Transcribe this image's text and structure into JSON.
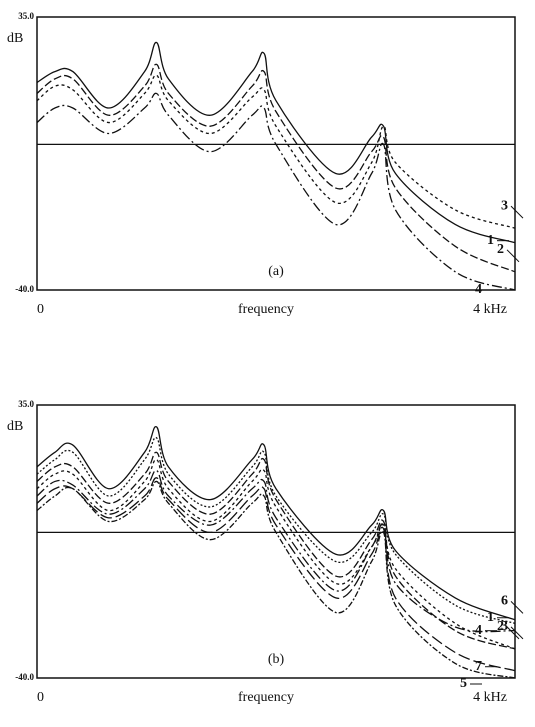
{
  "chart_data": [
    {
      "type": "line",
      "annotation": "(a)",
      "ylabel": "dB",
      "xlabel": "frequency",
      "x": [
        0,
        0.15,
        0.3,
        0.6,
        0.9,
        1.0,
        1.1,
        1.45,
        1.8,
        1.9,
        2.0,
        2.5,
        2.8,
        2.9,
        3.0,
        3.5,
        4.0
      ],
      "xlim": [
        0,
        4
      ],
      "xticks": [
        0,
        {
          "value": 4,
          "label": "4 kHz"
        }
      ],
      "ylim": [
        -40,
        35
      ],
      "yticks": [
        {
          "value": 35,
          "label": "35.0"
        },
        {
          "value": -40,
          "label": "-40.0"
        }
      ],
      "series": [
        {
          "name": "1",
          "color": "#111111",
          "values": [
            17,
            20,
            20,
            10,
            20,
            28,
            18,
            8,
            20,
            25,
            12,
            -8,
            2,
            5,
            -8,
            -22,
            -27
          ]
        },
        {
          "name": "2",
          "color": "#111111",
          "values": [
            14,
            18,
            18,
            8,
            16,
            22,
            14,
            5,
            16,
            20,
            9,
            -12,
            -2,
            2,
            -12,
            -28,
            -35
          ]
        },
        {
          "name": "3",
          "color": "#111111",
          "values": [
            12,
            16,
            15,
            6,
            14,
            19,
            12,
            3,
            13,
            15,
            5,
            -16,
            -5,
            5,
            -5,
            -18,
            -23
          ]
        },
        {
          "name": "4",
          "color": "#111111",
          "values": [
            6,
            10,
            10,
            3,
            10,
            14,
            8,
            -2,
            8,
            10,
            0,
            -22,
            -8,
            0,
            -18,
            -35,
            -40
          ]
        }
      ]
    },
    {
      "type": "line",
      "annotation": "(b)",
      "ylabel": "dB",
      "xlabel": "frequency",
      "x": [
        0,
        0.15,
        0.3,
        0.6,
        0.9,
        1.0,
        1.1,
        1.45,
        1.8,
        1.9,
        2.0,
        2.5,
        2.8,
        2.9,
        3.0,
        3.5,
        4.0
      ],
      "xlim": [
        0,
        4
      ],
      "xticks": [
        0,
        {
          "value": 4,
          "label": "4 kHz"
        }
      ],
      "ylim": [
        -40,
        35
      ],
      "yticks": [
        {
          "value": 35,
          "label": "35.0"
        },
        {
          "value": -40,
          "label": "-40.0"
        }
      ],
      "series": [
        {
          "name": "1",
          "color": "#111111",
          "values": [
            18,
            22,
            24,
            12,
            22,
            29,
            18,
            9,
            20,
            24,
            12,
            -6,
            2,
            6,
            -5,
            -18,
            -24
          ]
        },
        {
          "name": "2",
          "color": "#111111",
          "values": [
            14,
            18,
            18,
            8,
            16,
            22,
            14,
            5,
            16,
            20,
            9,
            -12,
            -2,
            3,
            -12,
            -27,
            -32
          ]
        },
        {
          "name": "3",
          "color": "#111111",
          "values": [
            12,
            16,
            16,
            6,
            14,
            20,
            12,
            3,
            14,
            17,
            7,
            -14,
            -4,
            2,
            -10,
            -25,
            -32
          ]
        },
        {
          "name": "4",
          "color": "#111111",
          "values": [
            10,
            14,
            13,
            5,
            12,
            17,
            10,
            2,
            12,
            14,
            4,
            -16,
            -4,
            2,
            -14,
            -26,
            -27
          ]
        },
        {
          "name": "5",
          "color": "#111111",
          "values": [
            6,
            10,
            12,
            3,
            9,
            14,
            8,
            -2,
            8,
            10,
            0,
            -22,
            -8,
            0,
            -20,
            -36,
            -40
          ]
        },
        {
          "name": "6",
          "color": "#111111",
          "values": [
            16,
            20,
            22,
            10,
            20,
            26,
            16,
            7,
            18,
            22,
            10,
            -8,
            0,
            5,
            -6,
            -20,
            -25
          ]
        },
        {
          "name": "7",
          "color": "#111111",
          "values": [
            8,
            12,
            12,
            4,
            10,
            15,
            9,
            0,
            10,
            12,
            2,
            -18,
            -6,
            1,
            -18,
            -33,
            -38
          ]
        }
      ]
    }
  ]
}
